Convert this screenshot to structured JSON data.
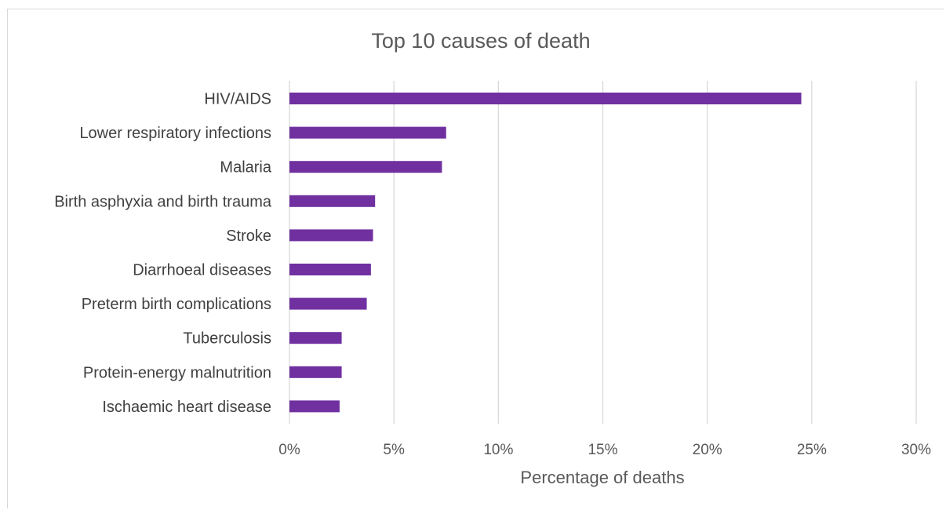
{
  "chart_data": {
    "type": "bar",
    "orientation": "horizontal",
    "title": "Top 10 causes of death",
    "xlabel": "Percentage of deaths",
    "ylabel": "",
    "categories": [
      "HIV/AIDS",
      "Lower respiratory infections",
      "Malaria",
      "Birth asphyxia and birth trauma",
      "Stroke",
      "Diarrhoeal diseases",
      "Preterm birth complications",
      "Tuberculosis",
      "Protein-energy malnutrition",
      "Ischaemic heart disease"
    ],
    "values": [
      24.5,
      7.5,
      7.3,
      4.1,
      4.0,
      3.9,
      3.7,
      2.5,
      2.5,
      2.4
    ],
    "xlim": [
      0,
      30
    ],
    "x_ticks": [
      "0%",
      "5%",
      "10%",
      "15%",
      "20%",
      "25%",
      "30%"
    ],
    "x_tick_values": [
      0,
      5,
      10,
      15,
      20,
      25,
      30
    ],
    "grid": "vertical",
    "legend": "none",
    "bar_color": "#7030a0",
    "gridline_color": "#d9d9d9"
  }
}
